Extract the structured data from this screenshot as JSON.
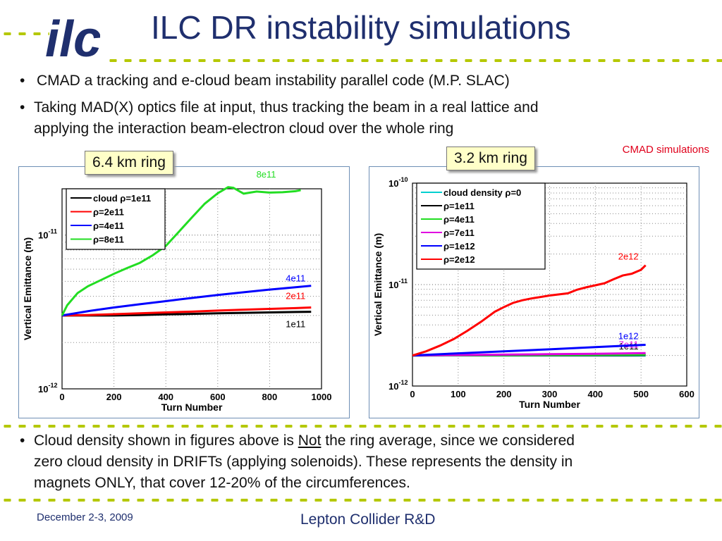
{
  "header": {
    "logo_text": "ilc",
    "title": "ILC DR instability simulations"
  },
  "bullets": {
    "b1": "CMAD a tracking and e-cloud beam instability parallel code (M.P. SLAC)",
    "b2_line1": "Taking MAD(X) optics file at input, thus tracking the beam in a real lattice and",
    "b2_line2": "applying the interaction beam-electron cloud over the whole ring",
    "b3_pre": "Cloud density shown in figures above is ",
    "b3_not": "Not",
    "b3_post": " the ring average, since we considered",
    "b3_line2": "zero cloud density in DRIFTs (applying solenoids). These represents the density in",
    "b3_line3": "magnets ONLY, that cover 12-20% of the circumferences."
  },
  "labels": {
    "ring1": "6.4 km ring",
    "ring2": "3.2 km ring",
    "cmad": "CMAD simulations"
  },
  "footer": {
    "date": "December 2-3, 2009",
    "event": "Lepton Collider R&D"
  },
  "colors": {
    "title": "#1f2f6e",
    "accent_dots": "#b5c800",
    "cmad_label": "#e0001b"
  },
  "chart_data": [
    {
      "type": "line",
      "xlabel": "Turn Number",
      "ylabel": "Vertical Emittance (m)",
      "yscale": "log",
      "xlim": [
        0,
        1000
      ],
      "ylim": [
        1e-12,
        2e-11
      ],
      "xticks": [
        "0",
        "200",
        "400",
        "600",
        "800",
        "1000"
      ],
      "yticks": [
        {
          "label": "10",
          "exp": "-12",
          "value": 1e-12
        },
        {
          "label": "10",
          "exp": "-11",
          "value": 1e-11
        }
      ],
      "grid": true,
      "legend_position": "top-left",
      "series": [
        {
          "name": "cloud ρ=1e11",
          "color": "#000000",
          "end_label": "1e11",
          "x": [
            0,
            100,
            200,
            300,
            400,
            500,
            600,
            700,
            800,
            900,
            960
          ],
          "y": [
            3e-12,
            3e-12,
            3e-12,
            3.02e-12,
            3.05e-12,
            3.07e-12,
            3.1e-12,
            3.12e-12,
            3.14e-12,
            3.16e-12,
            3.17e-12
          ]
        },
        {
          "name": "ρ=2e11",
          "color": "#ff0000",
          "end_label": "2e11",
          "x": [
            0,
            100,
            200,
            300,
            400,
            500,
            600,
            700,
            800,
            900,
            960
          ],
          "y": [
            3e-12,
            3.02e-12,
            3.06e-12,
            3.1e-12,
            3.14e-12,
            3.18e-12,
            3.23e-12,
            3.27e-12,
            3.31e-12,
            3.35e-12,
            3.38e-12
          ]
        },
        {
          "name": "ρ=4e11",
          "color": "#0000ff",
          "end_label": "4e11",
          "x": [
            0,
            100,
            200,
            300,
            400,
            500,
            600,
            700,
            800,
            900,
            960
          ],
          "y": [
            3e-12,
            3.2e-12,
            3.38e-12,
            3.55e-12,
            3.72e-12,
            3.9e-12,
            4.08e-12,
            4.25e-12,
            4.42e-12,
            4.58e-12,
            4.68e-12
          ]
        },
        {
          "name": "ρ=8e11",
          "color": "#22dd22",
          "end_label": "8e11",
          "x": [
            0,
            20,
            60,
            100,
            150,
            200,
            250,
            300,
            350,
            400,
            450,
            500,
            550,
            600,
            640,
            660,
            700,
            750,
            800,
            850,
            900,
            920
          ],
          "y": [
            3e-12,
            3.5e-12,
            4.2e-12,
            4.65e-12,
            5.1e-12,
            5.6e-12,
            6.1e-12,
            6.6e-12,
            7.4e-12,
            8.5e-12,
            1.05e-11,
            1.3e-11,
            1.6e-11,
            1.87e-11,
            2.05e-11,
            2.03e-11,
            1.86e-11,
            1.92e-11,
            1.89e-11,
            1.9e-11,
            1.93e-11,
            1.96e-11
          ]
        }
      ]
    },
    {
      "type": "line",
      "xlabel": "Turn Number",
      "ylabel": "Vertical Emittance (m)",
      "yscale": "log",
      "xlim": [
        0,
        600
      ],
      "ylim": [
        1e-12,
        1e-10
      ],
      "xticks": [
        "0",
        "100",
        "200",
        "300",
        "400",
        "500",
        "600"
      ],
      "yticks": [
        {
          "label": "10",
          "exp": "-12",
          "value": 1e-12
        },
        {
          "label": "10",
          "exp": "-11",
          "value": 1e-11
        },
        {
          "label": "10",
          "exp": "-10",
          "value": 1e-10
        }
      ],
      "grid": true,
      "legend_position": "top-left",
      "series": [
        {
          "name": "cloud density ρ=0",
          "color": "#00d0d0",
          "end_label": "",
          "x": [
            0,
            510
          ],
          "y": [
            2e-12,
            2e-12
          ]
        },
        {
          "name": "ρ=1e11",
          "color": "#000000",
          "end_label": "1e11",
          "x": [
            0,
            510
          ],
          "y": [
            2e-12,
            2.02e-12
          ]
        },
        {
          "name": "ρ=4e11",
          "color": "#22dd22",
          "end_label": "",
          "x": [
            0,
            510
          ],
          "y": [
            2e-12,
            2.04e-12
          ]
        },
        {
          "name": "ρ=7e11",
          "color": "#e000e0",
          "end_label": "7e11",
          "x": [
            0,
            100,
            200,
            300,
            400,
            510
          ],
          "y": [
            2e-12,
            2.02e-12,
            2.04e-12,
            2.06e-12,
            2.08e-12,
            2.11e-12
          ]
        },
        {
          "name": "ρ=1e12",
          "color": "#0000ff",
          "end_label": "1e12",
          "x": [
            0,
            100,
            200,
            300,
            400,
            510
          ],
          "y": [
            2e-12,
            2.1e-12,
            2.2e-12,
            2.3e-12,
            2.42e-12,
            2.55e-12
          ]
        },
        {
          "name": "ρ=2e12",
          "color": "#ff0000",
          "end_label": "2e12",
          "x": [
            0,
            30,
            60,
            90,
            120,
            150,
            180,
            200,
            220,
            240,
            260,
            300,
            340,
            360,
            380,
            420,
            440,
            460,
            480,
            500,
            510
          ],
          "y": [
            2e-12,
            2.2e-12,
            2.5e-12,
            2.9e-12,
            3.5e-12,
            4.3e-12,
            5.4e-12,
            6e-12,
            6.6e-12,
            7e-12,
            7.3e-12,
            7.8e-12,
            8.2e-12,
            8.9e-12,
            9.4e-12,
            1.03e-11,
            1.13e-11,
            1.23e-11,
            1.28e-11,
            1.4e-11,
            1.55e-11
          ]
        }
      ]
    }
  ]
}
